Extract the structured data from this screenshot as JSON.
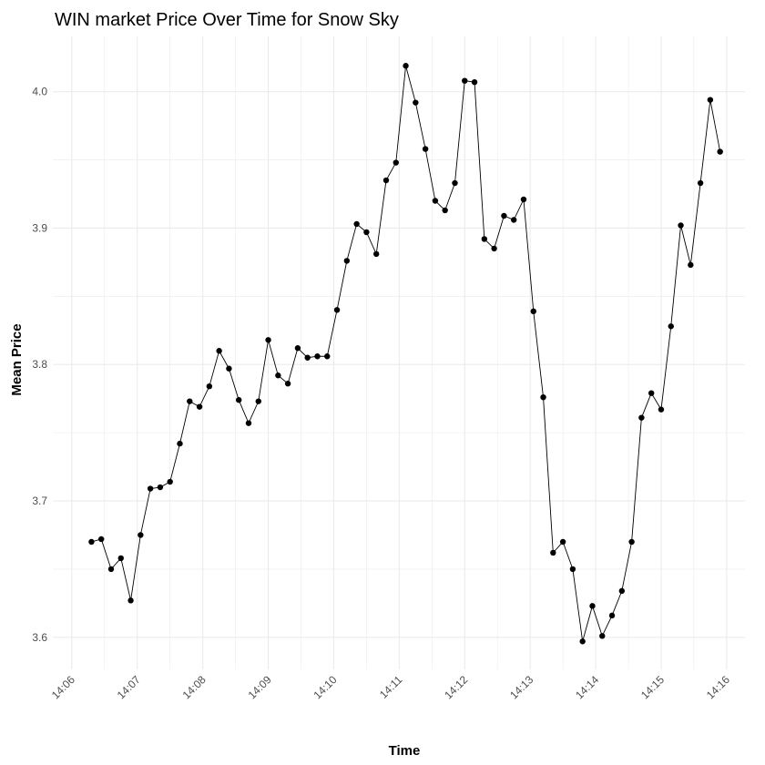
{
  "chart_data": {
    "type": "line",
    "title": "WIN market Price Over Time for Snow Sky",
    "xlabel": "Time",
    "ylabel": "Mean Price",
    "x_unit": "minutes since 14:06",
    "x_ticks": [
      {
        "value": 0,
        "label": "14:06"
      },
      {
        "value": 1,
        "label": "14:07"
      },
      {
        "value": 2,
        "label": "14:08"
      },
      {
        "value": 3,
        "label": "14:09"
      },
      {
        "value": 4,
        "label": "14:10"
      },
      {
        "value": 5,
        "label": "14:11"
      },
      {
        "value": 6,
        "label": "14:12"
      },
      {
        "value": 7,
        "label": "14:13"
      },
      {
        "value": 8,
        "label": "14:14"
      },
      {
        "value": 9,
        "label": "14:15"
      },
      {
        "value": 10,
        "label": "14:16"
      }
    ],
    "y_ticks": [
      {
        "value": 3.6,
        "label": "3.6"
      },
      {
        "value": 3.7,
        "label": "3.7"
      },
      {
        "value": 3.8,
        "label": "3.8"
      },
      {
        "value": 3.9,
        "label": "3.9"
      },
      {
        "value": 4.0,
        "label": "4.0"
      }
    ],
    "xlim": [
      -0.29,
      10.28
    ],
    "ylim": [
      3.5765,
      4.0405
    ],
    "grid": true,
    "point_color": "#000000",
    "line_color": "#000000",
    "grid_color": "#ebebeb",
    "series": [
      {
        "x": [
          0.3,
          0.45,
          0.6,
          0.75,
          0.9,
          1.05,
          1.2,
          1.35,
          1.5,
          1.65,
          1.8,
          1.95,
          2.1,
          2.25,
          2.4,
          2.55,
          2.7,
          2.85,
          3.0,
          3.15,
          3.3,
          3.45,
          3.6,
          3.75,
          3.9,
          4.05,
          4.2,
          4.35,
          4.5,
          4.65,
          4.8,
          4.95,
          5.1,
          5.25,
          5.4,
          5.55,
          5.7,
          5.85,
          6.0,
          6.15,
          6.3,
          6.45,
          6.6,
          6.75,
          6.9,
          7.05,
          7.2,
          7.35,
          7.5,
          7.65,
          7.8,
          7.95,
          8.1,
          8.25,
          8.4,
          8.55,
          8.7,
          8.85,
          9.0,
          9.15,
          9.3,
          9.45,
          9.6,
          9.75,
          9.9
        ],
        "y": [
          3.67,
          3.672,
          3.65,
          3.658,
          3.627,
          3.675,
          3.709,
          3.71,
          3.714,
          3.742,
          3.773,
          3.769,
          3.784,
          3.81,
          3.797,
          3.774,
          3.757,
          3.773,
          3.818,
          3.792,
          3.786,
          3.812,
          3.805,
          3.806,
          3.806,
          3.84,
          3.876,
          3.903,
          3.897,
          3.881,
          3.935,
          3.948,
          4.019,
          3.992,
          3.958,
          3.92,
          3.913,
          3.933,
          4.008,
          4.007,
          3.892,
          3.885,
          3.909,
          3.906,
          3.921,
          3.839,
          3.776,
          3.662,
          3.67,
          3.65,
          3.597,
          3.623,
          3.601,
          3.616,
          3.634,
          3.67,
          3.761,
          3.779,
          3.767,
          3.828,
          3.902,
          3.873,
          3.933,
          3.994,
          3.956
        ]
      }
    ]
  }
}
